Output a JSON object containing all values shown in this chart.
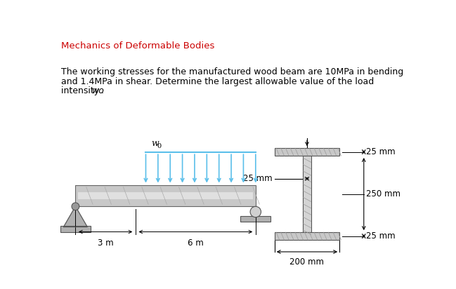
{
  "title": "Mechanics of Deformable Bodies",
  "title_color": "#cc0000",
  "line1": "The working stresses for the manufactured wood beam are 10MPa in bending",
  "line2": "and 1.4MPa in shear. Determine the largest allowable value of the load",
  "line3_pre": "intensity ",
  "line3_italic": "wo",
  "line3_post": ".",
  "load_color": "#5bbfea",
  "bg_color": "#ffffff",
  "beam_fill": "#c8c8c8",
  "beam_edge": "#666666",
  "beam_stripe": "#e0e0e0",
  "support_fill": "#b0b0b0",
  "support_edge": "#555555",
  "flange_fill": "#c8c8c8",
  "flange_edge": "#555555",
  "web_fill": "#d4d4d4",
  "web_edge": "#555555",
  "hatch_color": "#999999",
  "dim_color": "#000000",
  "dim_25mm_top": "25 mm",
  "dim_25mm_bot": "25 mm",
  "dim_250mm": "250 mm",
  "dim_200mm": "200 mm",
  "dim_25mm_web": "25 mm",
  "dim_3m": "3 m",
  "dim_6m": "6 m",
  "wo_label": "w",
  "wo_sub": "0"
}
